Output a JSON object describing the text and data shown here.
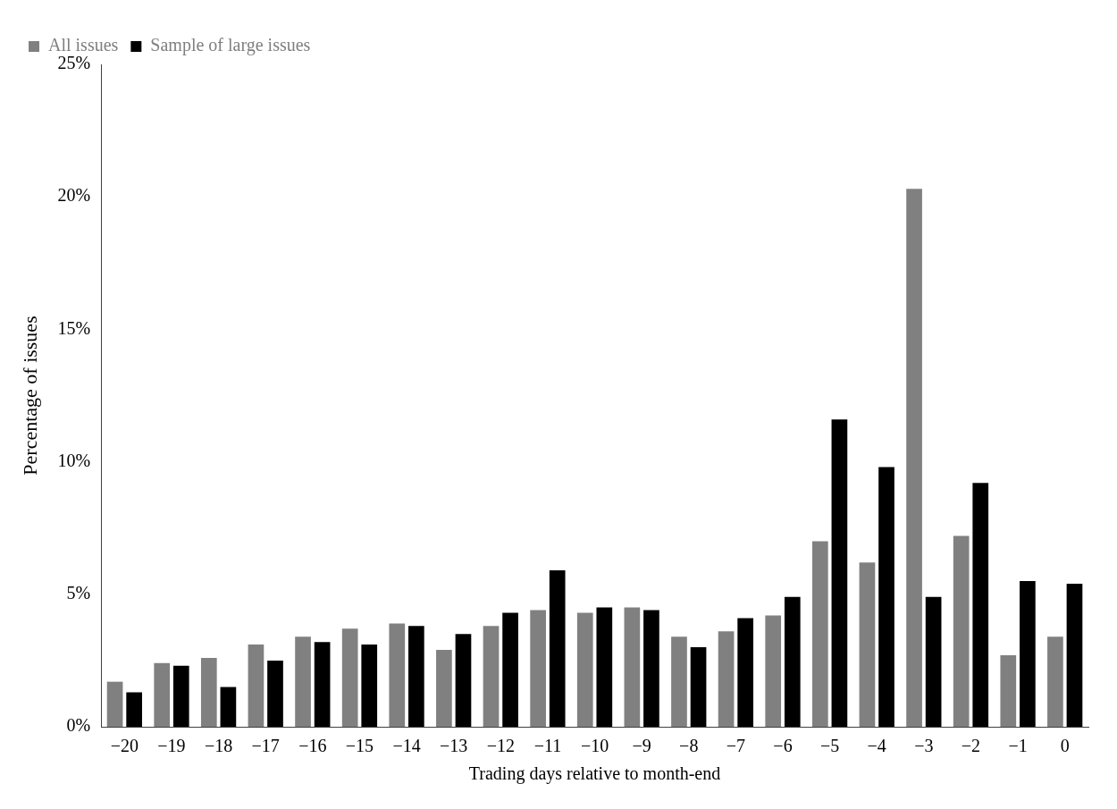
{
  "chart_data": {
    "type": "bar",
    "xlabel": "Trading days relative to month-end",
    "ylabel": "Percentage of issues",
    "categories": [
      "−20",
      "−19",
      "−18",
      "−17",
      "−16",
      "−15",
      "−14",
      "−13",
      "−12",
      "−11",
      "−10",
      "−9",
      "−8",
      "−7",
      "−6",
      "−5",
      "−4",
      "−3",
      "−2",
      "−1",
      "0"
    ],
    "series": [
      {
        "name": "All issues",
        "color": "#808080",
        "values": [
          1.7,
          2.4,
          2.6,
          3.1,
          3.4,
          3.7,
          3.9,
          2.9,
          3.8,
          4.4,
          4.3,
          4.5,
          3.4,
          3.6,
          4.2,
          7.0,
          6.2,
          20.3,
          7.2,
          2.7,
          3.4
        ]
      },
      {
        "name": "Sample of large issues",
        "color": "#000000",
        "values": [
          1.3,
          2.3,
          1.5,
          2.5,
          3.2,
          3.1,
          3.8,
          3.5,
          4.3,
          5.9,
          4.5,
          4.4,
          3.0,
          4.1,
          4.9,
          11.6,
          9.8,
          4.9,
          9.2,
          5.5,
          5.4
        ]
      }
    ],
    "ylim": [
      0,
      25
    ],
    "yticks": [
      {
        "value": 0,
        "label": "0%"
      },
      {
        "value": 5,
        "label": "5%"
      },
      {
        "value": 10,
        "label": "10%"
      },
      {
        "value": 15,
        "label": "15%"
      },
      {
        "value": 20,
        "label": "20%"
      },
      {
        "value": 25,
        "label": "25%"
      }
    ],
    "grid": false,
    "legend": "top left"
  }
}
